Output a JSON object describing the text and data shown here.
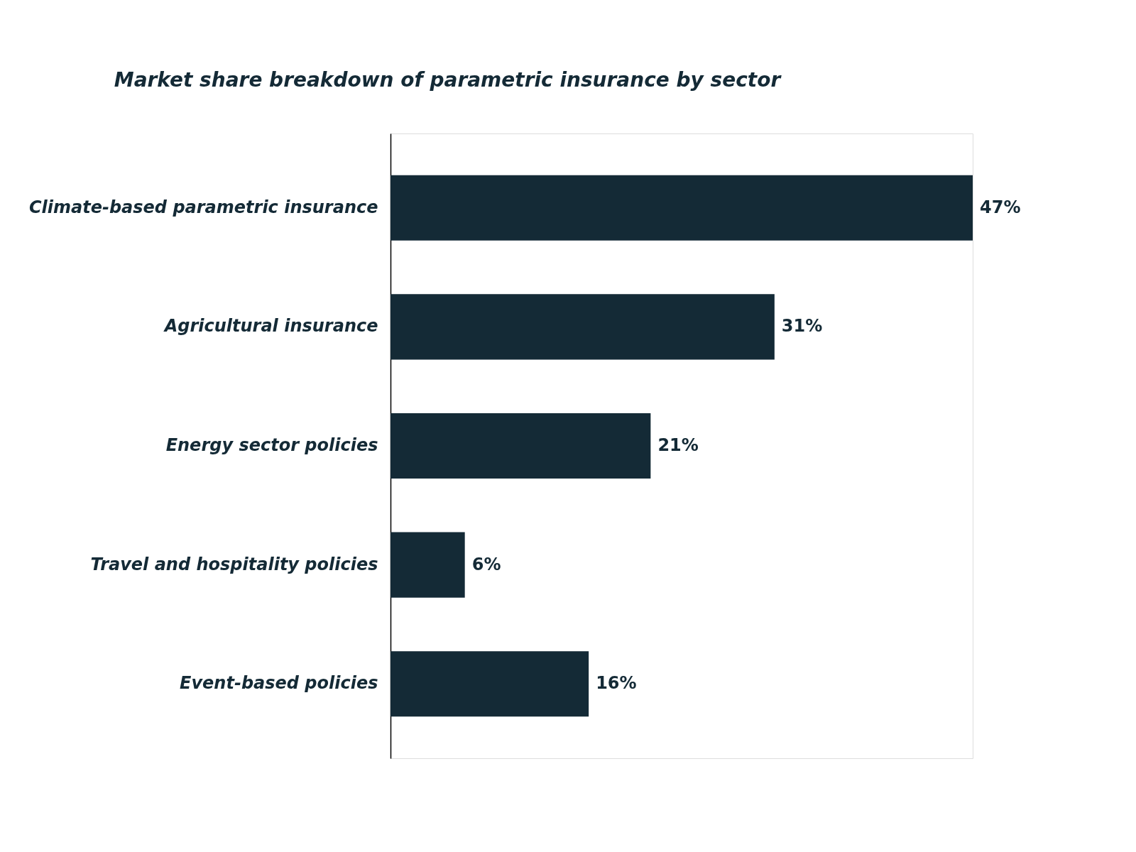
{
  "chart_data": {
    "type": "bar",
    "orientation": "horizontal",
    "title": "Market share breakdown of parametric insurance by sector",
    "categories": [
      "Climate-based parametric insurance",
      "Agricultural insurance",
      "Energy sector policies",
      "Travel and hospitality policies",
      "Event-based policies"
    ],
    "values": [
      47,
      31,
      21,
      6,
      16
    ],
    "value_labels": [
      "47%",
      "31%",
      "21%",
      "6%",
      "16%"
    ],
    "color": "#142a36"
  }
}
